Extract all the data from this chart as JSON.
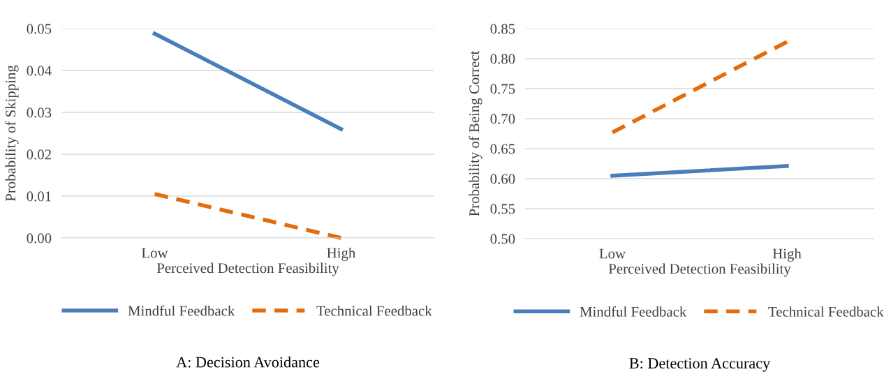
{
  "chart_data": [
    {
      "type": "line",
      "title": "A: Decision Avoidance",
      "xlabel": "Perceived Detection Feasibility",
      "ylabel": "Probability of Skipping",
      "categories": [
        "Low",
        "High"
      ],
      "series": [
        {
          "name": "Mindful Feedback",
          "color": "#4a7ebb",
          "values": [
            0.0488,
            0.026
          ],
          "line_style": "solid"
        },
        {
          "name": "Technical Feedback",
          "color": "#e46c0a",
          "values": [
            0.0105,
            0.0
          ],
          "line_style": "dashed"
        }
      ],
      "ylim": [
        0,
        0.05
      ],
      "yticks": [
        {
          "value": 0,
          "label": "0.00"
        },
        {
          "value": 0.01,
          "label": "0.01"
        },
        {
          "value": 0.02,
          "label": "0.02"
        },
        {
          "value": 0.03,
          "label": "0.03"
        },
        {
          "value": 0.04,
          "label": "0.04"
        },
        {
          "value": 0.05,
          "label": "0.05"
        }
      ],
      "grid": "y",
      "legend": "bottom"
    },
    {
      "type": "line",
      "title": "B: Detection Accuracy",
      "xlabel": "Perceived Detection Feasibility",
      "ylabel": "Probability of Being Correct",
      "categories": [
        "Low",
        "High"
      ],
      "series": [
        {
          "name": "Mindful Feedback",
          "color": "#4a7ebb",
          "values": [
            0.605,
            0.621
          ],
          "line_style": "solid"
        },
        {
          "name": "Technical Feedback",
          "color": "#e46c0a",
          "values": [
            0.677,
            0.828
          ],
          "line_style": "dashed"
        }
      ],
      "ylim": [
        0.5,
        0.85
      ],
      "yticks": [
        {
          "value": 0.5,
          "label": "0.50"
        },
        {
          "value": 0.55,
          "label": "0.55"
        },
        {
          "value": 0.6,
          "label": "0.60"
        },
        {
          "value": 0.65,
          "label": "0.65"
        },
        {
          "value": 0.7,
          "label": "0.70"
        },
        {
          "value": 0.75,
          "label": "0.75"
        },
        {
          "value": 0.8,
          "label": "0.80"
        },
        {
          "value": 0.85,
          "label": "0.85"
        }
      ],
      "grid": "y",
      "legend": "bottom"
    }
  ]
}
